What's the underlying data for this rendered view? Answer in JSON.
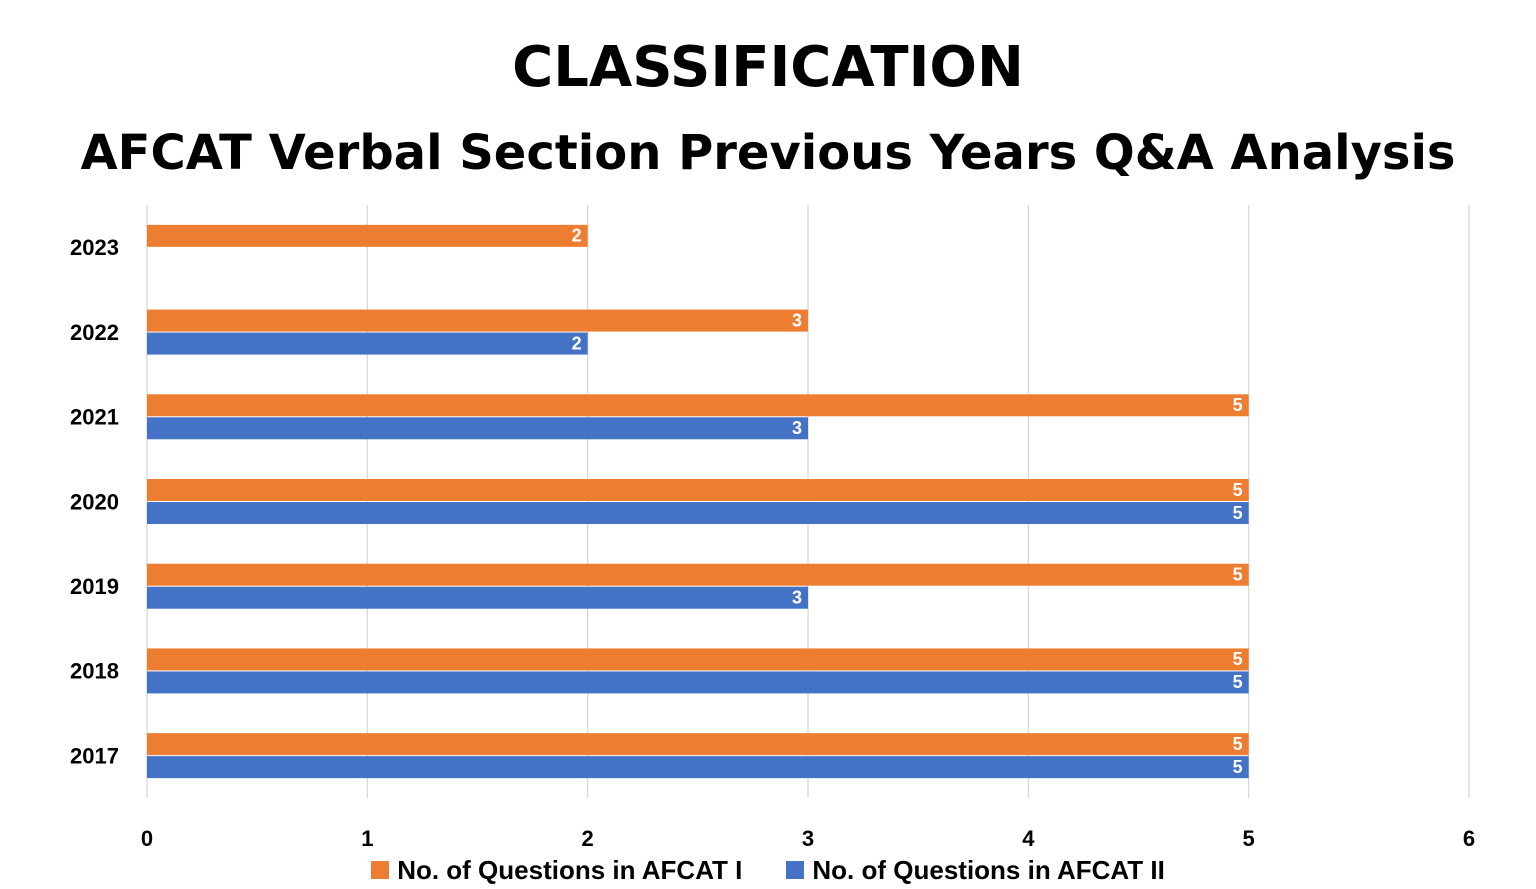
{
  "chart_data": {
    "type": "bar",
    "orientation": "horizontal",
    "title": "CLASSIFICATION",
    "subtitle": "AFCAT Verbal Section Previous Years Q&A Analysis",
    "categories": [
      "2023",
      "2022",
      "2021",
      "2020",
      "2019",
      "2018",
      "2017"
    ],
    "series": [
      {
        "name": "No. of Questions in AFCAT I",
        "color": "#ED7D31",
        "values": [
          2,
          3,
          5,
          5,
          5,
          5,
          5
        ]
      },
      {
        "name": "No. of Questions in AFCAT II",
        "color": "#4472C4",
        "values": [
          null,
          2,
          3,
          5,
          3,
          5,
          5
        ]
      }
    ],
    "xlim": [
      0,
      6
    ],
    "xticks": [
      "0",
      "1",
      "2",
      "3",
      "4",
      "5",
      "6"
    ],
    "xlabel": "",
    "ylabel": "",
    "grid": "vertical",
    "data_labels": true,
    "legend": "bottom"
  }
}
